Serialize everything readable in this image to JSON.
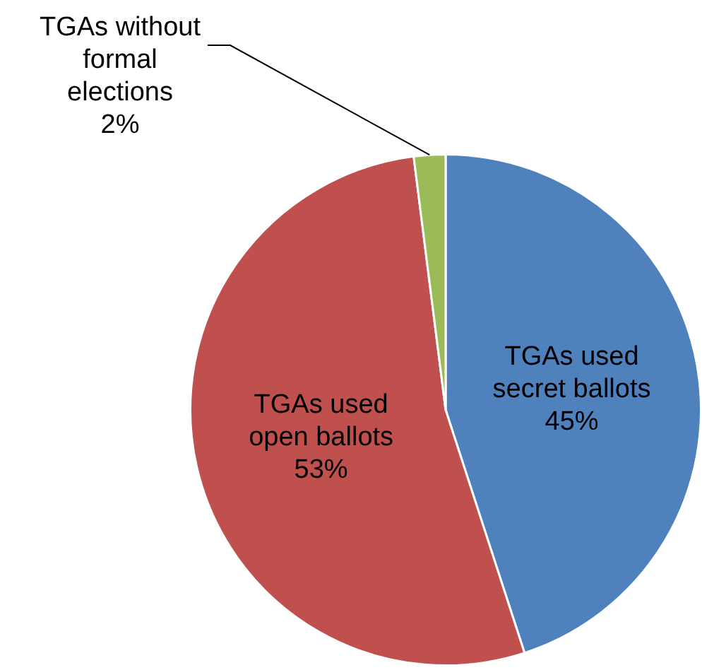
{
  "chart_data": {
    "type": "pie",
    "categories": [
      "TGAs used secret ballots",
      "TGAs used open ballots",
      "TGAs without formal elections"
    ],
    "values": [
      45,
      53,
      2
    ],
    "colors": [
      "#4f81bd",
      "#c0504d",
      "#9bbb59"
    ],
    "value_labels": [
      "45%",
      "53%",
      "2%"
    ],
    "legend": false
  }
}
